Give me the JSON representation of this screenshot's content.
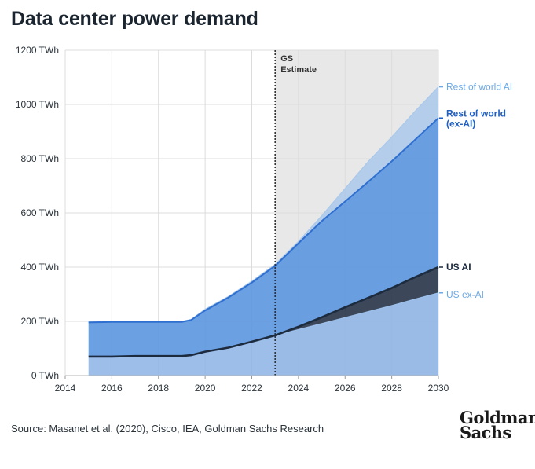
{
  "title": "Data center power demand",
  "source": "Source: Masanet et al. (2020), Cisco, IEA, Goldman Sachs Research",
  "logo": {
    "line1": "Goldman",
    "line2": "Sachs"
  },
  "colors": {
    "rest_of_world_ai": "#a9c8ea",
    "rest_of_world_ex_ai": "#5b96df",
    "us_ai": "#1d2b3f",
    "us_ex_ai": "#8db3e6",
    "estimate_shade": "#e8e8e8",
    "grid": "#dcdcdc",
    "label_light": "#6aa9e6",
    "label_dark": "#1d5fc7",
    "label_navy": "#1b2a3f"
  },
  "chart_data": {
    "type": "area",
    "stacked": true,
    "title": "Data center power demand",
    "xlabel": "",
    "ylabel": "",
    "xlim": [
      2014,
      2030
    ],
    "ylim": [
      0,
      1200
    ],
    "x_ticks": [
      "2014",
      "2016",
      "2018",
      "2020",
      "2022",
      "2024",
      "2026",
      "2028",
      "2030"
    ],
    "y_ticks": [
      "0 TWh",
      "200 TWh",
      "400 TWh",
      "600 TWh",
      "800 TWh",
      "1000 TWh",
      "1200 TWh"
    ],
    "estimate_start": 2023,
    "estimate_label": [
      "GS",
      "Estimate"
    ],
    "x": [
      2015,
      2016,
      2017,
      2018,
      2019,
      2019.4,
      2020,
      2021,
      2022,
      2023,
      2024,
      2025,
      2026,
      2027,
      2028,
      2029,
      2030
    ],
    "series": [
      {
        "name": "US ex-AI",
        "label": "US ex-AI",
        "cumulative": [
          70,
          70,
          72,
          72,
          72,
          75,
          88,
          103,
          125,
          148,
          170,
          192,
          214,
          236,
          258,
          282,
          305
        ]
      },
      {
        "name": "US AI",
        "label": "US AI",
        "cumulative": [
          70,
          70,
          72,
          72,
          72,
          75,
          88,
          103,
          125,
          148,
          180,
          215,
          252,
          287,
          323,
          363,
          400
        ]
      },
      {
        "name": "Rest of world (ex-AI)",
        "label": [
          "Rest of world",
          "(ex-AI)"
        ],
        "cumulative": [
          196,
          198,
          198,
          198,
          198,
          205,
          240,
          288,
          343,
          405,
          488,
          570,
          642,
          715,
          790,
          870,
          950
        ]
      },
      {
        "name": "Rest of world AI",
        "label": "Rest of world AI",
        "cumulative": [
          198,
          200,
          200,
          200,
          200,
          207,
          245,
          292,
          348,
          410,
          495,
          590,
          690,
          790,
          880,
          975,
          1065
        ]
      }
    ]
  }
}
